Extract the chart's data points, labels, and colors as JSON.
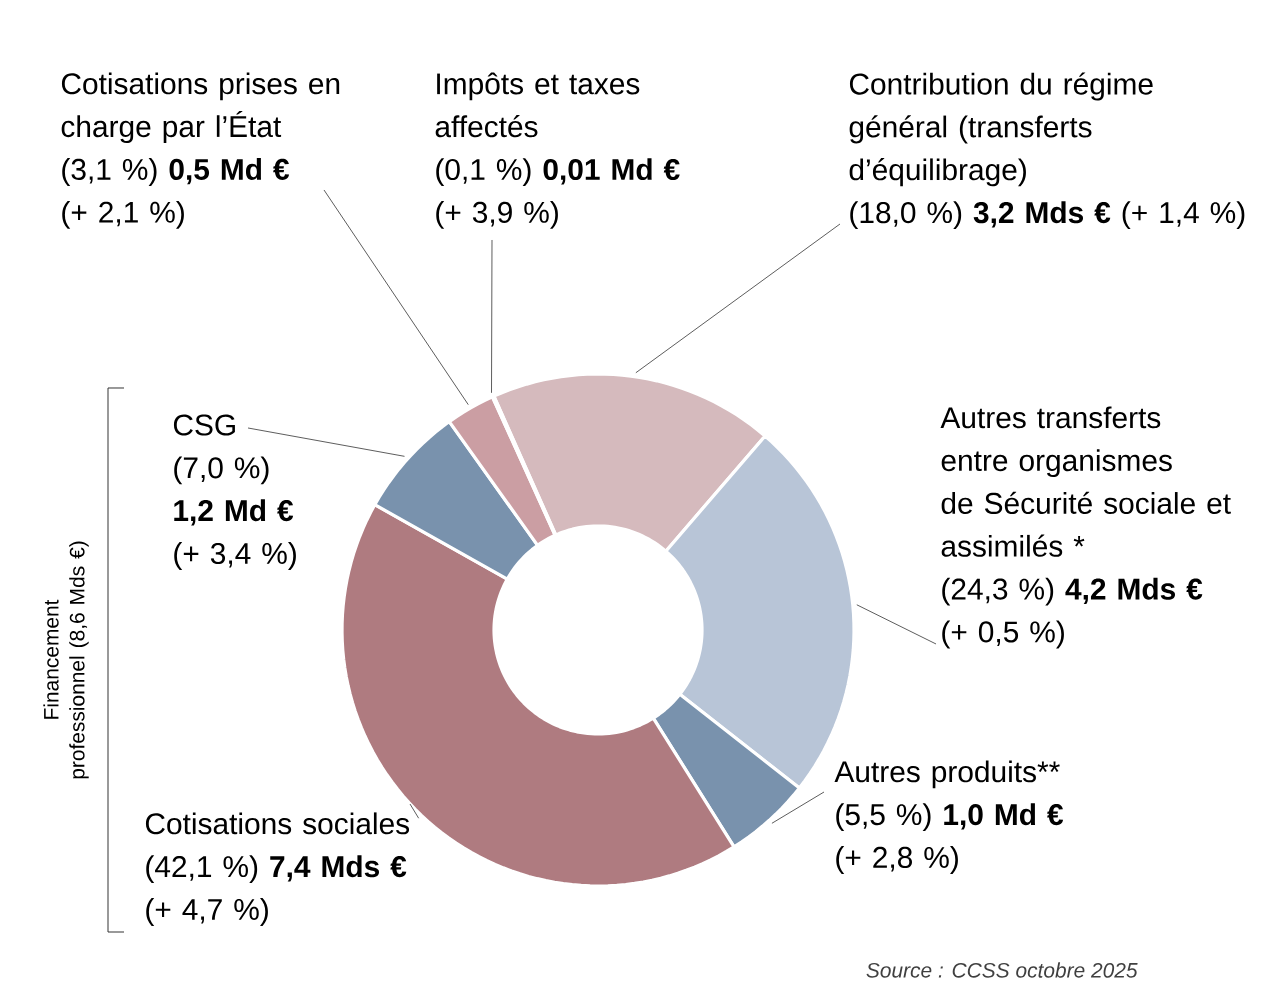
{
  "chart_data": {
    "type": "donut",
    "categories": [
      "Contribution du régime général (transferts d’équilibrage)",
      "Autres transferts entre organismes de Sécurité sociale et assimilés *",
      "Autres produits**",
      "Cotisations sociales",
      "CSG",
      "Cotisations prises en charge par l’État",
      "Impôts et taxes affectés"
    ],
    "values": [
      18.0,
      24.3,
      5.5,
      42.1,
      7.0,
      3.1,
      0.1
    ],
    "colors": [
      "#d5babd",
      "#b8c5d7",
      "#7992ad",
      "#af7b80",
      "#7992ad",
      "#cb9ea3",
      "#7992ad"
    ],
    "value_labels": [
      "(18,0 %) **3,2 Mds €** (+ 1,4 %)",
      "(24,3 %) **4,2 Mds €** (+ 0,5 %)",
      "(5,5 %) **1,0 Md €** (+ 2,8 %)",
      "(42,1 %) **7,4 Mds €** (+ 4,7 %)",
      "(7,0 %) **1,2 Md €** (+ 3,4 %)",
      "(3,1 %) **0,5 Md €** (+ 2,1 %)",
      "(0,1 %) **0,01 Md €** (+ 3,9 %)"
    ],
    "annotations": [
      "Financement professionnel (8,6 Mds €)",
      "Source : CCSS octobre 2025"
    ]
  }
}
